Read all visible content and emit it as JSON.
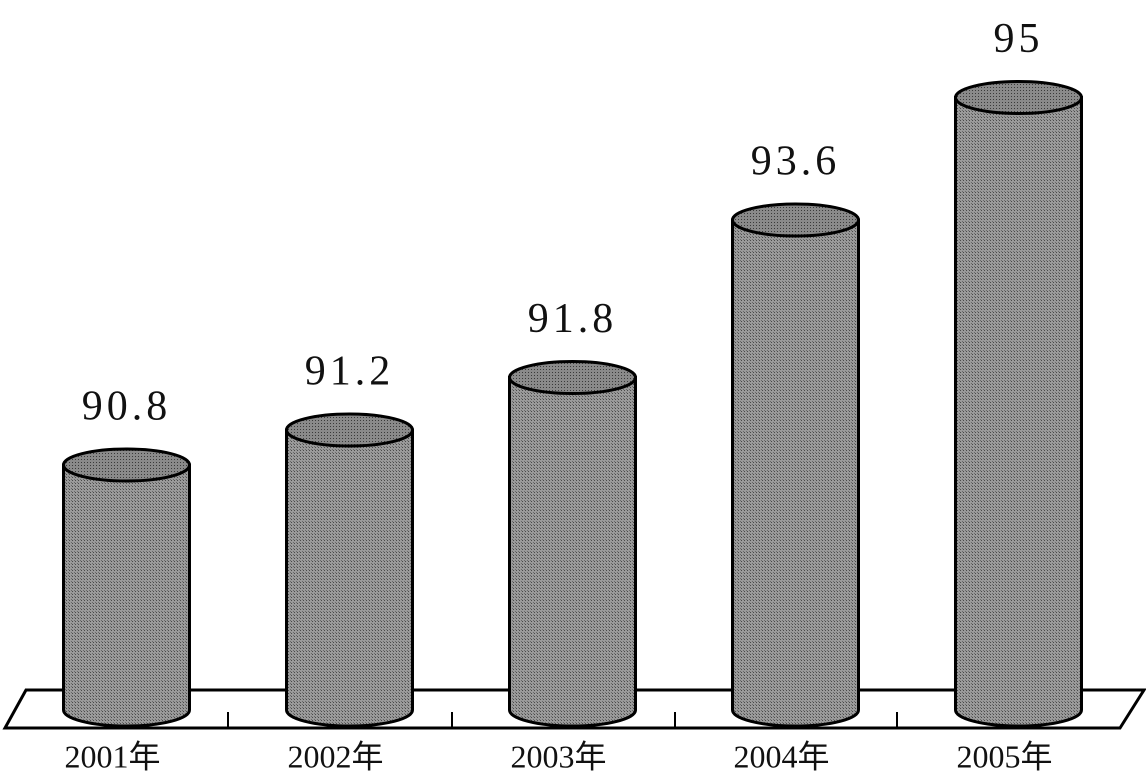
{
  "chart_data": {
    "type": "bar",
    "categories": [
      "2001年",
      "2002年",
      "2003年",
      "2004年",
      "2005年"
    ],
    "values": [
      90.8,
      91.2,
      91.8,
      93.6,
      95
    ],
    "color": "#8a8a8a",
    "ylim": [
      88,
      96
    ]
  }
}
